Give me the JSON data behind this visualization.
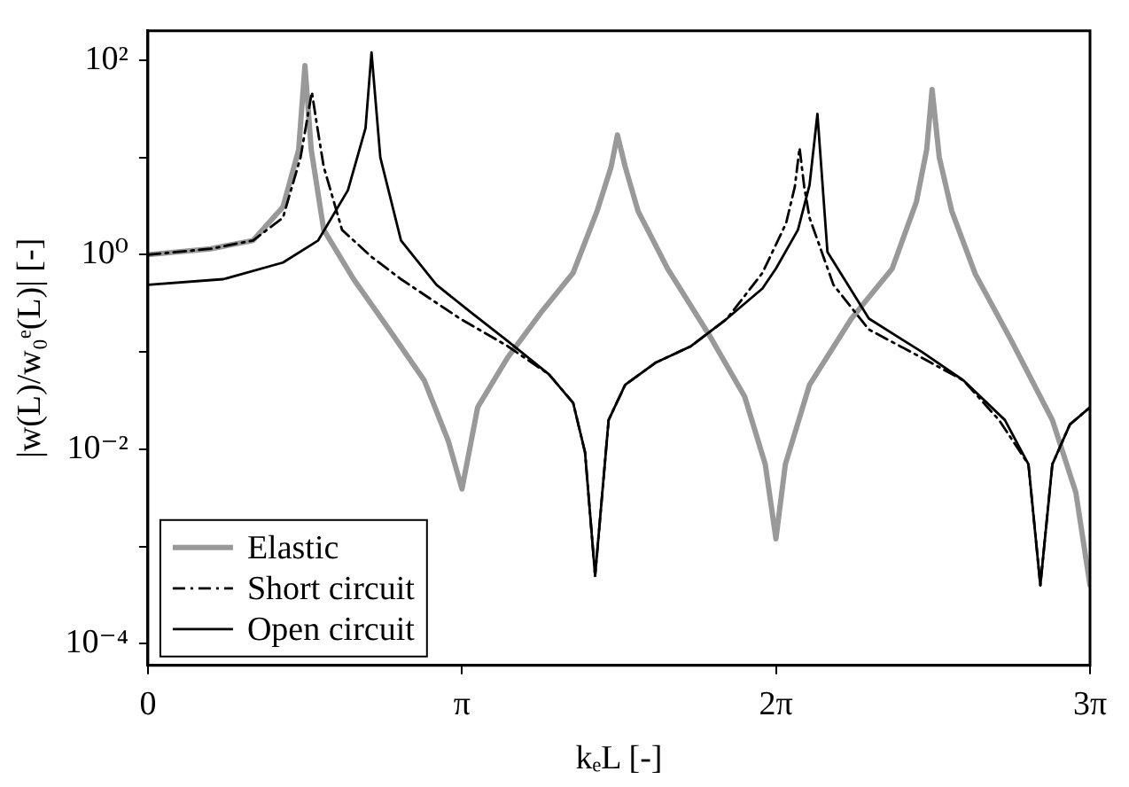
{
  "chart_data": {
    "type": "line",
    "xlabel": "kₑL [-]",
    "ylabel": "|w(L)/w₀ᵉ(L)| [-]",
    "log": "y",
    "grid": false,
    "legend": "bottom left",
    "marker": "none",
    "xlim": [
      0,
      9.4248
    ],
    "xticks": [
      0,
      {
        "value": 3.1416,
        "label": "π"
      },
      {
        "value": 6.2832,
        "label": "2π"
      },
      {
        "value": 9.4248,
        "label": "3π"
      }
    ],
    "ylim": [
      6e-05,
      200
    ],
    "yticks": [
      {
        "value": 0.0001,
        "label": "10⁻⁴"
      },
      {
        "value": 0.001,
        "label": null
      },
      {
        "value": 0.01,
        "label": "10⁻²"
      },
      {
        "value": 0.1,
        "label": null
      },
      {
        "value": 1,
        "label": "10⁰"
      },
      {
        "value": 10,
        "label": null
      },
      {
        "value": 100,
        "label": "10²"
      }
    ],
    "series": [
      {
        "name": "Elastic",
        "color": "#999999",
        "line_style": "solid",
        "x": [
          0,
          0.628,
          1.052,
          1.351,
          1.508,
          1.571,
          1.634,
          1.759,
          2.058,
          2.413,
          2.765,
          3.007,
          3.142,
          3.299,
          3.597,
          3.927,
          4.254,
          4.493,
          4.634,
          4.697,
          4.775,
          4.904,
          5.199,
          5.614,
          5.969,
          6.176,
          6.283,
          6.377,
          6.619,
          7.037,
          7.446,
          7.688,
          7.791,
          7.845,
          7.917,
          8.042,
          8.278,
          8.639,
          9.048,
          9.283,
          9.4248
        ],
        "values": [
          1.0,
          1.15,
          1.4,
          3.1,
          12,
          88,
          12,
          1.8,
          0.56,
          0.17,
          0.051,
          0.012,
          0.0039,
          0.027,
          0.087,
          0.25,
          0.65,
          2.8,
          8,
          17,
          8,
          2.8,
          0.72,
          0.15,
          0.035,
          0.007,
          0.0012,
          0.007,
          0.046,
          0.22,
          0.72,
          3.5,
          12,
          50,
          10,
          2.8,
          0.63,
          0.13,
          0.02,
          0.0036,
          0.0004
        ]
      },
      {
        "name": "Short circuit",
        "color": "#000000",
        "line_style": "dashed",
        "x": [
          0,
          0.628,
          1.052,
          1.351,
          1.527,
          1.64,
          1.696,
          1.759,
          1.942,
          2.237,
          2.532,
          3.123,
          3.597,
          4.012,
          4.254,
          4.373,
          4.474,
          4.609,
          4.775,
          5.083,
          5.435,
          5.793,
          6.148,
          6.384,
          6.472,
          6.519,
          6.566,
          6.619,
          6.858,
          7.213,
          7.744,
          8.159,
          8.514,
          8.809,
          8.928,
          9.048,
          9.224,
          9.4248
        ],
        "values": [
          1.0,
          1.15,
          1.4,
          2.4,
          10,
          47,
          20,
          8,
          1.8,
          0.95,
          0.56,
          0.22,
          0.115,
          0.059,
          0.03,
          0.0093,
          0.0005,
          0.02,
          0.046,
          0.078,
          0.115,
          0.22,
          0.65,
          2.1,
          5,
          12.5,
          5,
          2.4,
          0.49,
          0.17,
          0.087,
          0.051,
          0.02,
          0.007,
          0.0004,
          0.007,
          0.018,
          0.027
        ]
      },
      {
        "name": "Open circuit",
        "color": "#000000",
        "line_style": "solid",
        "x": [
          0,
          0.754,
          1.351,
          1.703,
          2.001,
          2.177,
          2.237,
          2.325,
          2.532,
          2.887,
          3.242,
          3.597,
          4.012,
          4.254,
          4.373,
          4.474,
          4.609,
          4.775,
          5.083,
          5.435,
          5.793,
          6.148,
          6.283,
          6.503,
          6.619,
          6.698,
          6.798,
          7.213,
          7.744,
          8.159,
          8.573,
          8.809,
          8.928,
          9.048,
          9.224,
          9.4248
        ],
        "values": [
          0.49,
          0.56,
          0.83,
          1.4,
          4.6,
          20,
          120,
          10,
          1.4,
          0.49,
          0.25,
          0.13,
          0.059,
          0.03,
          0.0093,
          0.0005,
          0.02,
          0.046,
          0.078,
          0.115,
          0.22,
          0.45,
          0.72,
          1.8,
          5.2,
          28,
          1.07,
          0.22,
          0.1,
          0.051,
          0.02,
          0.007,
          0.0004,
          0.007,
          0.018,
          0.027
        ]
      }
    ]
  }
}
